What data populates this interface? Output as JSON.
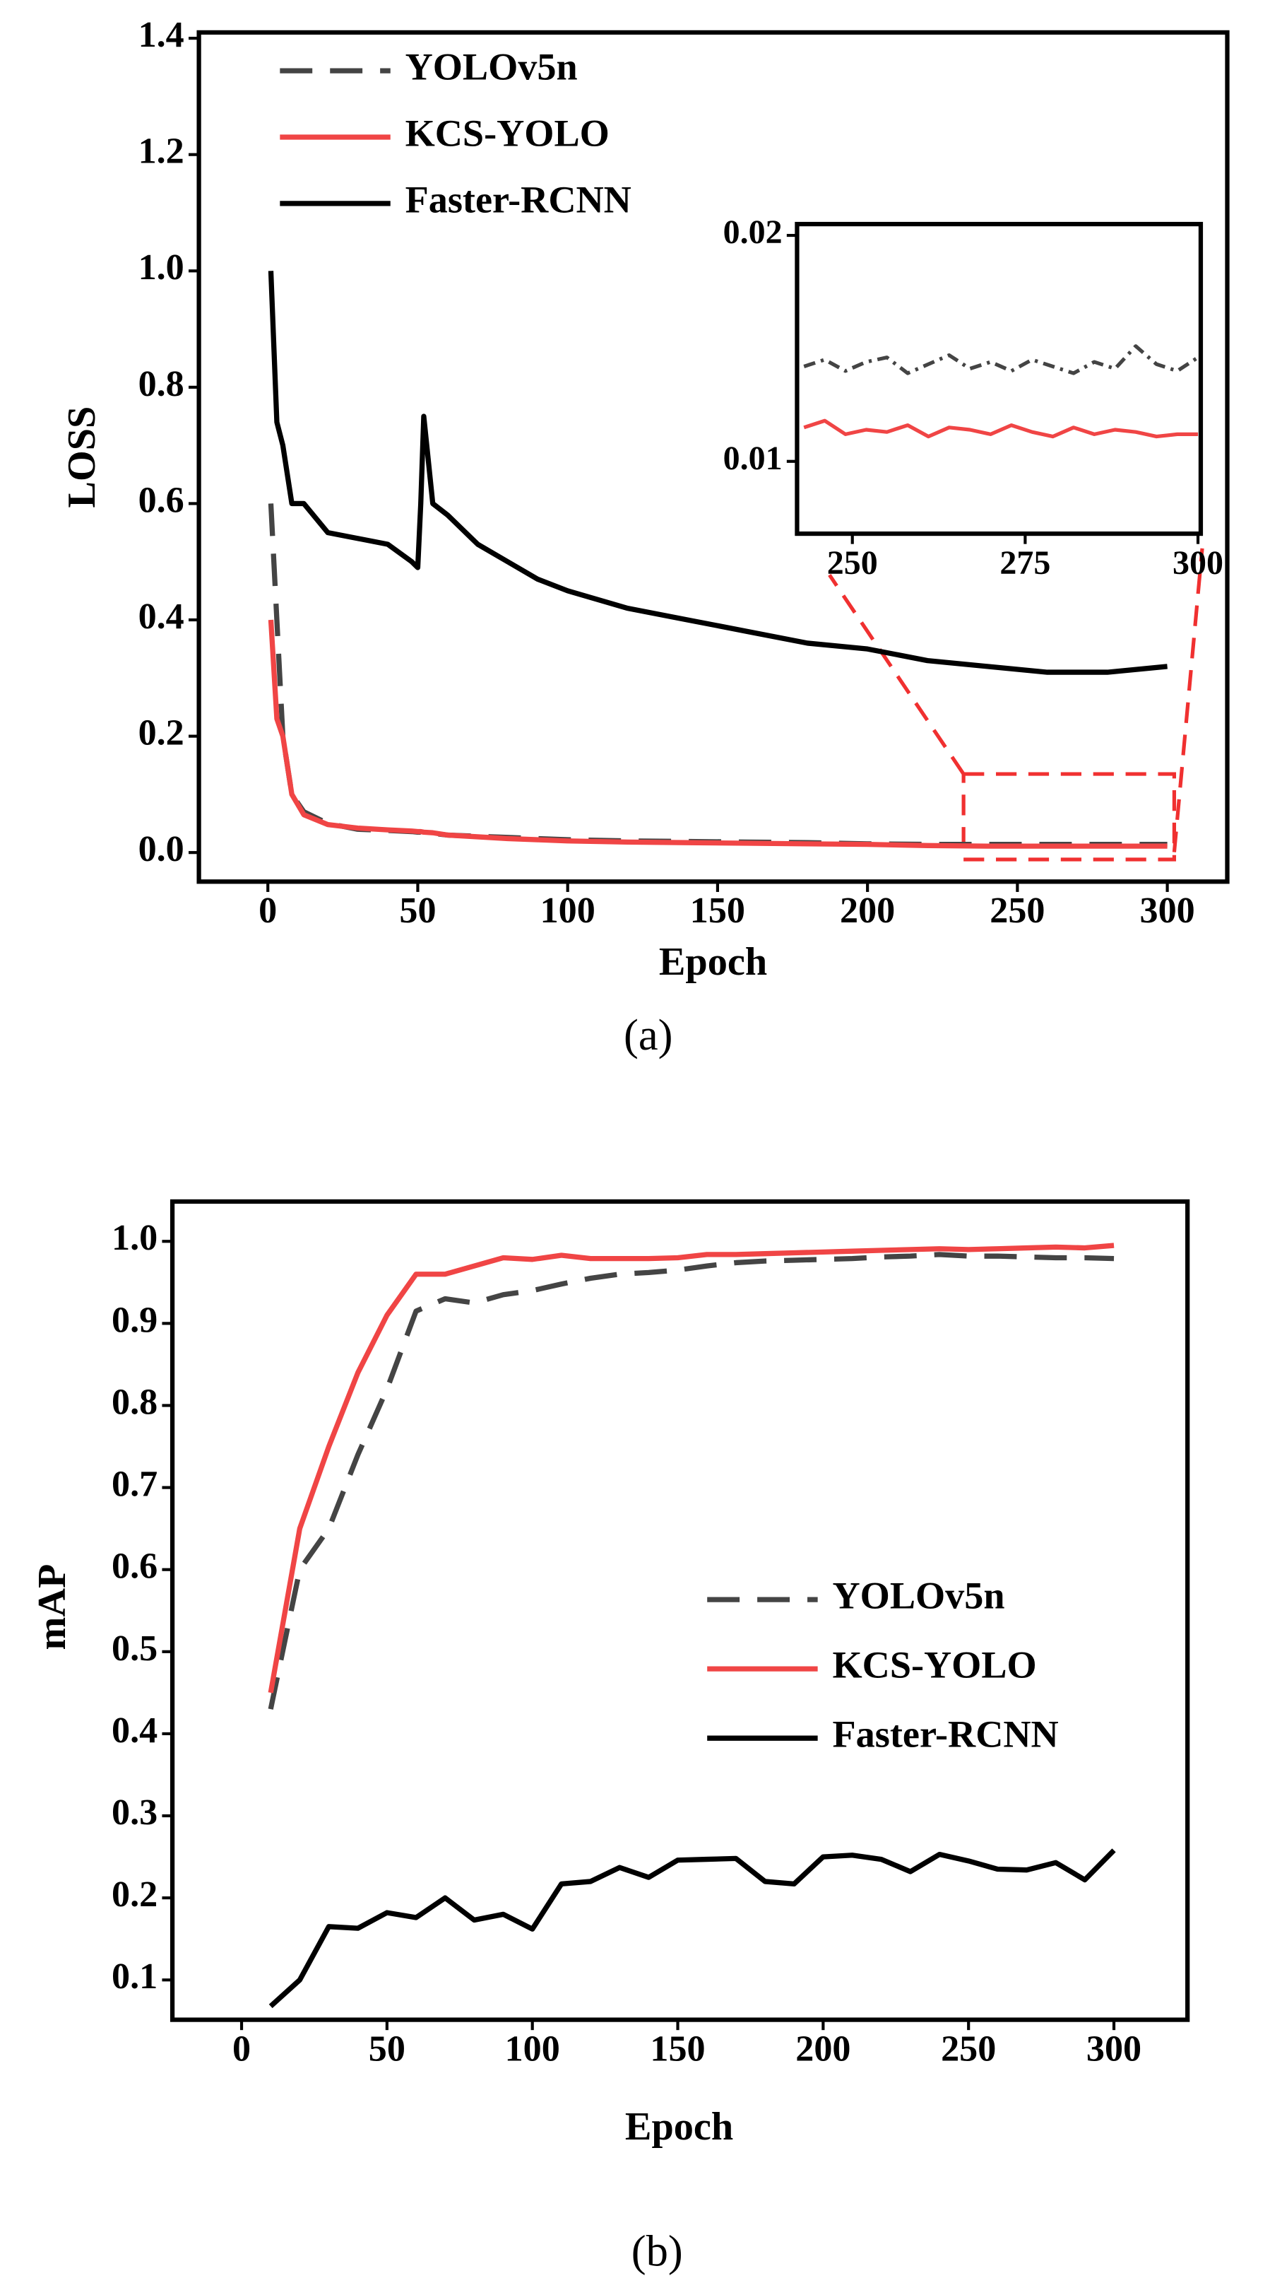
{
  "chart_data": [
    {
      "type": "line",
      "caption": "(a)",
      "x_label": "Epoch",
      "y_label": "LOSS",
      "legend": "upper left",
      "x": [
        1,
        3,
        5,
        8,
        12,
        20,
        30,
        40,
        48,
        50,
        51,
        52,
        55,
        60,
        70,
        80,
        90,
        100,
        120,
        140,
        160,
        180,
        200,
        220,
        240,
        260,
        280,
        300
      ],
      "series": [
        {
          "name": "YOLOv5n",
          "color": "#444444",
          "style": "dashed",
          "values": [
            0.6,
            0.4,
            0.2,
            0.1,
            0.07,
            0.05,
            0.04,
            0.038,
            0.036,
            0.035,
            0.035,
            0.034,
            0.033,
            0.03,
            0.028,
            0.026,
            0.024,
            0.022,
            0.02,
            0.019,
            0.018,
            0.017,
            0.015,
            0.014,
            0.014,
            0.014,
            0.014,
            0.014
          ]
        },
        {
          "name": "KCS-YOLO",
          "color": "#f04545",
          "style": "solid",
          "values": [
            0.4,
            0.23,
            0.2,
            0.1,
            0.065,
            0.048,
            0.042,
            0.039,
            0.037,
            0.036,
            0.036,
            0.035,
            0.034,
            0.03,
            0.027,
            0.024,
            0.022,
            0.02,
            0.018,
            0.017,
            0.016,
            0.015,
            0.014,
            0.012,
            0.011,
            0.011,
            0.011,
            0.011
          ]
        },
        {
          "name": "Faster-RCNN",
          "color": "#000000",
          "style": "solid",
          "values": [
            1.0,
            0.74,
            0.7,
            0.6,
            0.6,
            0.55,
            0.54,
            0.53,
            0.5,
            0.49,
            0.6,
            0.75,
            0.6,
            0.58,
            0.53,
            0.5,
            0.47,
            0.45,
            0.42,
            0.4,
            0.38,
            0.36,
            0.35,
            0.33,
            0.32,
            0.31,
            0.31,
            0.32
          ]
        }
      ],
      "xlim": [
        -23,
        320
      ],
      "ylim": [
        -0.05,
        1.41
      ],
      "xticks": [
        0,
        50,
        100,
        150,
        200,
        250,
        300
      ],
      "yticks": [
        {
          "value": 0,
          "label": "0.0"
        },
        0.2,
        0.4,
        0.6,
        0.8,
        {
          "value": 1,
          "label": "1.0"
        },
        1.2,
        1.4
      ]
    },
    {
      "type": "line",
      "x": [
        243,
        246,
        249,
        252,
        255,
        258,
        261,
        264,
        267,
        270,
        273,
        276,
        279,
        282,
        285,
        288,
        291,
        294,
        297,
        300
      ],
      "series": [
        {
          "color": "#444444",
          "style": "dashdot",
          "values": [
            0.0142,
            0.0145,
            0.014,
            0.0144,
            0.0146,
            0.0139,
            0.0143,
            0.0147,
            0.0141,
            0.0144,
            0.014,
            0.0145,
            0.0142,
            0.0139,
            0.0144,
            0.0141,
            0.0151,
            0.0143,
            0.014,
            0.0146
          ]
        },
        {
          "color": "#f04545",
          "style": "solid",
          "values": [
            0.0115,
            0.0118,
            0.0112,
            0.0114,
            0.0113,
            0.0116,
            0.0111,
            0.0115,
            0.0114,
            0.0112,
            0.0116,
            0.0113,
            0.0111,
            0.0115,
            0.0112,
            0.0114,
            0.0113,
            0.0111,
            0.0112,
            0.0112
          ]
        }
      ],
      "xlim": [
        242,
        300.4
      ],
      "ylim": [
        0.0068,
        0.0205
      ],
      "xticks": [
        250,
        275,
        300
      ],
      "yticks": [
        0.01,
        0.02
      ]
    },
    {
      "type": "line",
      "caption": "(b)",
      "x_label": "Epoch",
      "y_label": "mAP",
      "legend": "center right",
      "x": [
        10,
        20,
        30,
        40,
        50,
        60,
        70,
        80,
        90,
        100,
        110,
        120,
        130,
        140,
        150,
        160,
        170,
        180,
        190,
        200,
        210,
        220,
        230,
        240,
        250,
        260,
        270,
        280,
        290,
        300
      ],
      "series": [
        {
          "name": "YOLOv5n",
          "color": "#444444",
          "style": "dashed",
          "values": [
            0.43,
            0.6,
            0.65,
            0.74,
            0.82,
            0.915,
            0.93,
            0.925,
            0.935,
            0.94,
            0.948,
            0.955,
            0.96,
            0.962,
            0.965,
            0.97,
            0.974,
            0.976,
            0.977,
            0.978,
            0.979,
            0.981,
            0.982,
            0.984,
            0.982,
            0.982,
            0.981,
            0.98,
            0.98,
            0.979
          ]
        },
        {
          "name": "KCS-YOLO",
          "color": "#f04545",
          "style": "solid",
          "values": [
            0.45,
            0.65,
            0.75,
            0.84,
            0.91,
            0.96,
            0.96,
            0.97,
            0.98,
            0.978,
            0.983,
            0.979,
            0.979,
            0.979,
            0.98,
            0.984,
            0.984,
            0.985,
            0.986,
            0.987,
            0.988,
            0.989,
            0.99,
            0.991,
            0.99,
            0.991,
            0.992,
            0.993,
            0.992,
            0.995
          ]
        },
        {
          "name": "Faster-RCNN",
          "color": "#000000",
          "style": "solid",
          "values": [
            0.068,
            0.1,
            0.165,
            0.163,
            0.182,
            0.176,
            0.2,
            0.173,
            0.18,
            0.162,
            0.217,
            0.22,
            0.237,
            0.225,
            0.246,
            0.247,
            0.248,
            0.22,
            0.217,
            0.25,
            0.252,
            0.247,
            0.232,
            0.253,
            0.245,
            0.235,
            0.234,
            0.243,
            0.222,
            0.258
          ]
        }
      ],
      "xlim": [
        -23.8,
        325.3
      ],
      "ylim": [
        0.0515,
        1.0485
      ],
      "xticks": [
        0,
        50,
        100,
        150,
        200,
        250,
        300
      ],
      "yticks": [
        0.1,
        0.2,
        0.3,
        0.4,
        0.5,
        0.6,
        0.7,
        0.8,
        0.9,
        {
          "value": 1,
          "label": "1.0"
        }
      ]
    }
  ]
}
